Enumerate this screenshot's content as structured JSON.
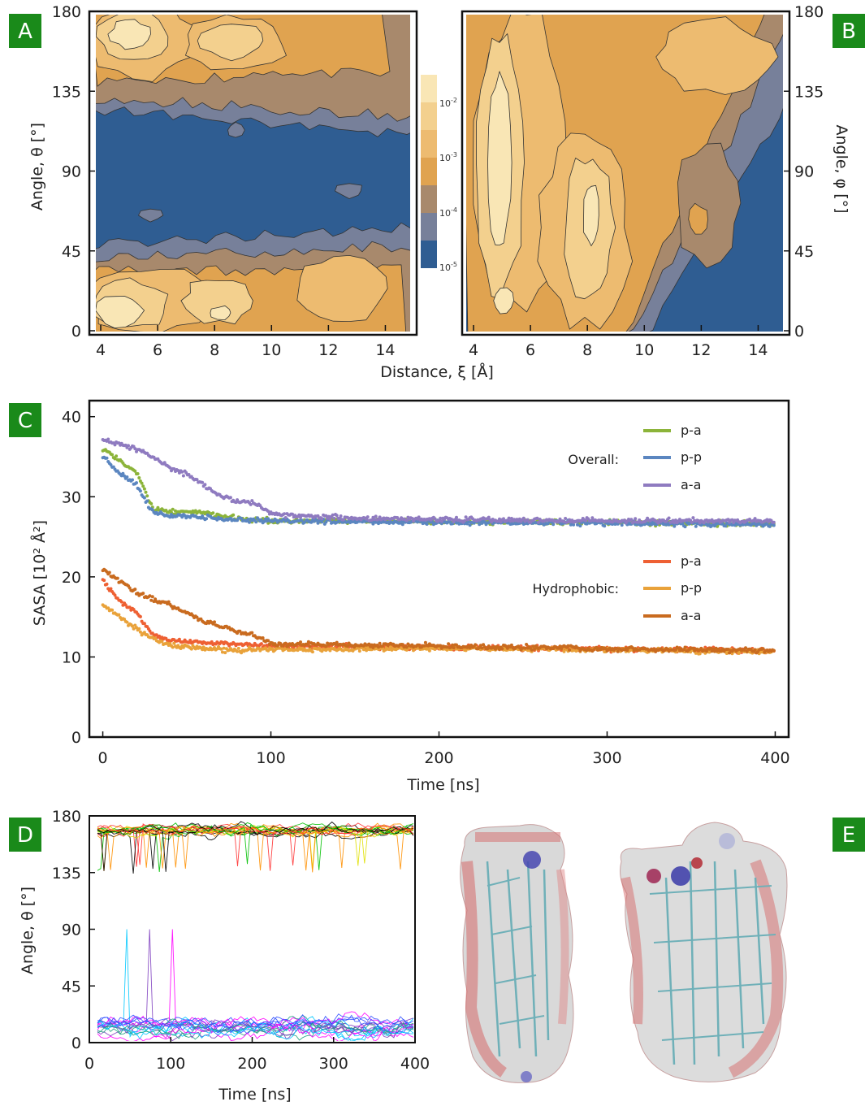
{
  "colors": {
    "panel_label_bg": "#1a8a1a",
    "contour_levels": [
      "#2f5d92",
      "#77809a",
      "#a8896c",
      "#e0a350",
      "#edbb70",
      "#f3d08e",
      "#f9e6b5"
    ],
    "series_overall": {
      "p-a": "#8cb43a",
      "p-p": "#5b86c0",
      "a-a": "#8f7bc0"
    },
    "series_hydrophobic": {
      "p-a": "#ee6033",
      "p-p": "#e9a23a",
      "a-a": "#c96b1f"
    }
  },
  "panels": {
    "A": {
      "label": "A"
    },
    "B": {
      "label": "B"
    },
    "C": {
      "label": "C"
    },
    "D": {
      "label": "D"
    },
    "E": {
      "label": "E"
    }
  },
  "colorbar": {
    "ticks": [
      "10",
      "10",
      "10",
      "10"
    ],
    "exponents": [
      "-2",
      "-3",
      "-4",
      "-5"
    ]
  },
  "structure_image": {
    "description_icon": "molecule-render-icon"
  },
  "chart_data": [
    {
      "id": "A",
      "type": "heatmap",
      "xlabel": "Distance, ξ [Å]",
      "ylabel": "Angle, θ [°]",
      "xticks": [
        4,
        6,
        8,
        10,
        12,
        14
      ],
      "yticks": [
        0,
        45,
        90,
        135,
        180
      ],
      "xlim": [
        3.6,
        15.1
      ],
      "ylim": [
        0,
        180
      ],
      "scale": "log",
      "color_ticks": [
        "10^-2",
        "10^-3",
        "10^-4",
        "10^-5"
      ]
    },
    {
      "id": "B",
      "type": "heatmap",
      "xlabel": "Distance, ξ [Å]",
      "ylabel": "Angle, φ [°]",
      "xticks": [
        4,
        6,
        8,
        10,
        12,
        14
      ],
      "yticks": [
        0,
        45,
        90,
        135,
        180
      ],
      "xlim": [
        3.6,
        15.1
      ],
      "ylim": [
        0,
        180
      ],
      "scale": "log"
    },
    {
      "id": "C",
      "type": "scatter",
      "xlabel": "Time [ns]",
      "ylabel": "SASA [10² Å²]",
      "xticks": [
        0,
        100,
        200,
        300,
        400
      ],
      "yticks": [
        0,
        10,
        20,
        30,
        40
      ],
      "xlim": [
        -8,
        408
      ],
      "ylim": [
        0,
        42
      ],
      "legend_groups": [
        {
          "title": "Overall:",
          "entries": [
            "p-a",
            "p-p",
            "a-a"
          ]
        },
        {
          "title": "Hydrophobic:",
          "entries": [
            "p-a",
            "p-p",
            "a-a"
          ]
        }
      ],
      "series": [
        {
          "name": "p-a",
          "group": "Overall:",
          "x": [
            0,
            10,
            20,
            30,
            40,
            60,
            80,
            100,
            150,
            200,
            300,
            400
          ],
          "values": [
            36.0,
            34.5,
            33.0,
            28.5,
            28.2,
            28.0,
            27.3,
            27.0,
            27.0,
            26.9,
            26.8,
            26.6
          ]
        },
        {
          "name": "p-p",
          "group": "Overall:",
          "x": [
            0,
            10,
            20,
            30,
            40,
            60,
            80,
            100,
            150,
            200,
            300,
            400
          ],
          "values": [
            35.0,
            33.0,
            31.5,
            28.0,
            27.7,
            27.4,
            27.1,
            27.0,
            26.9,
            26.8,
            26.7,
            26.5
          ]
        },
        {
          "name": "a-a",
          "group": "Overall:",
          "x": [
            0,
            10,
            20,
            30,
            40,
            50,
            60,
            70,
            80,
            90,
            100,
            150,
            200,
            300,
            400
          ],
          "values": [
            37.0,
            36.5,
            36.0,
            35.0,
            33.5,
            32.8,
            31.5,
            30.0,
            29.5,
            29.3,
            27.8,
            27.3,
            27.2,
            27.0,
            27.0
          ]
        },
        {
          "name": "p-a",
          "group": "Hydrophobic:",
          "x": [
            0,
            10,
            20,
            30,
            40,
            60,
            80,
            100,
            150,
            200,
            300,
            400
          ],
          "values": [
            19.5,
            17.0,
            15.5,
            12.8,
            12.0,
            11.8,
            11.6,
            11.4,
            11.3,
            11.2,
            11.0,
            10.8
          ]
        },
        {
          "name": "p-p",
          "group": "Hydrophobic:",
          "x": [
            0,
            10,
            20,
            30,
            40,
            60,
            80,
            100,
            150,
            200,
            300,
            400
          ],
          "values": [
            16.5,
            15.0,
            13.5,
            12.2,
            11.5,
            11.0,
            10.8,
            10.9,
            11.0,
            11.1,
            10.9,
            10.6
          ]
        },
        {
          "name": "a-a",
          "group": "Hydrophobic:",
          "x": [
            0,
            10,
            20,
            30,
            40,
            50,
            60,
            70,
            80,
            90,
            100,
            150,
            200,
            300,
            400
          ],
          "values": [
            21.0,
            19.5,
            18.0,
            17.2,
            16.5,
            15.5,
            14.5,
            13.8,
            13.2,
            12.8,
            11.6,
            11.5,
            11.4,
            11.0,
            10.8
          ]
        }
      ]
    },
    {
      "id": "D",
      "type": "line",
      "xlabel": "Time [ns]",
      "ylabel": "Angle, θ [°]",
      "xticks": [
        0,
        100,
        200,
        300,
        400
      ],
      "yticks": [
        0,
        45,
        90,
        135,
        180
      ],
      "xlim": [
        0,
        400
      ],
      "ylim": [
        0,
        180
      ],
      "description": "many trajectories, upper band near 170 and lower band near 15"
    }
  ]
}
